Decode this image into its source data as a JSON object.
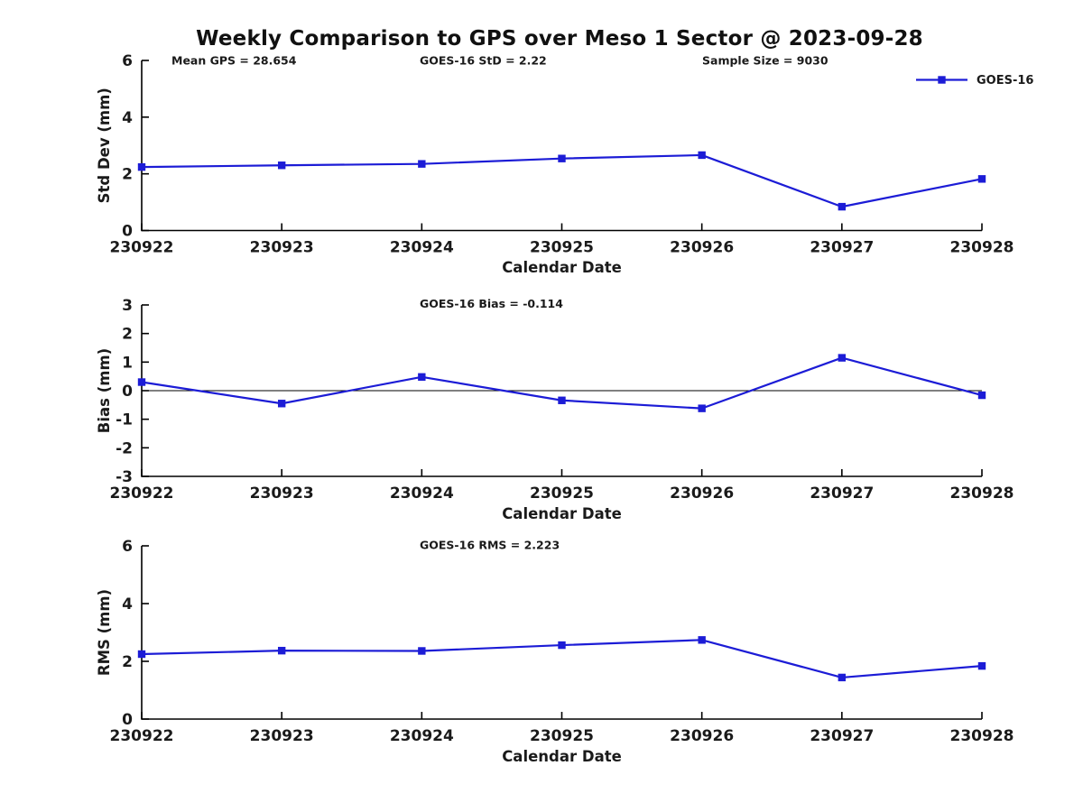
{
  "title": "Weekly Comparison to GPS over Meso 1 Sector @ 2023-09-28",
  "legend": {
    "label": "GOES-16"
  },
  "colors": {
    "line_blue": "#1c1cd6",
    "axis_black": "#000000",
    "text_black": "#1a1a1a"
  },
  "chart_data": [
    {
      "type": "line",
      "categories": [
        "230922",
        "230923",
        "230924",
        "230925",
        "230926",
        "230927",
        "230928"
      ],
      "series": [
        {
          "name": "GOES-16",
          "values": [
            2.24,
            2.3,
            2.35,
            2.54,
            2.66,
            0.84,
            1.82
          ]
        }
      ],
      "xlabel": "Calendar Date",
      "ylabel": "Std Dev (mm)",
      "ylim": [
        0,
        6
      ],
      "yticks": [
        0,
        2,
        4,
        6
      ],
      "annotations": [
        "Mean GPS = 28.654",
        "GOES-16 StD = 2.22",
        "Sample Size = 9030"
      ],
      "zero_line": false,
      "show_legend": true,
      "legend_position": "top-right",
      "grid": false
    },
    {
      "type": "line",
      "categories": [
        "230922",
        "230923",
        "230924",
        "230925",
        "230926",
        "230927",
        "230928"
      ],
      "series": [
        {
          "name": "GOES-16",
          "values": [
            0.3,
            -0.45,
            0.48,
            -0.34,
            -0.62,
            1.15,
            -0.16
          ]
        }
      ],
      "xlabel": "Calendar Date",
      "ylabel": "Bias (mm)",
      "ylim": [
        -3,
        3
      ],
      "yticks": [
        -3,
        -2,
        -1,
        0,
        1,
        2,
        3
      ],
      "annotations": [
        "GOES-16 Bias  = -0.114"
      ],
      "zero_line": true,
      "show_legend": false,
      "grid": false
    },
    {
      "type": "line",
      "categories": [
        "230922",
        "230923",
        "230924",
        "230925",
        "230926",
        "230927",
        "230928"
      ],
      "series": [
        {
          "name": "GOES-16",
          "values": [
            2.25,
            2.37,
            2.36,
            2.56,
            2.74,
            1.44,
            1.84
          ]
        }
      ],
      "xlabel": "Calendar Date",
      "ylabel": "RMS (mm)",
      "ylim": [
        0,
        6
      ],
      "yticks": [
        0,
        2,
        4,
        6
      ],
      "annotations": [
        "GOES-16 RMS = 2.223"
      ],
      "zero_line": false,
      "show_legend": false,
      "grid": false
    }
  ]
}
